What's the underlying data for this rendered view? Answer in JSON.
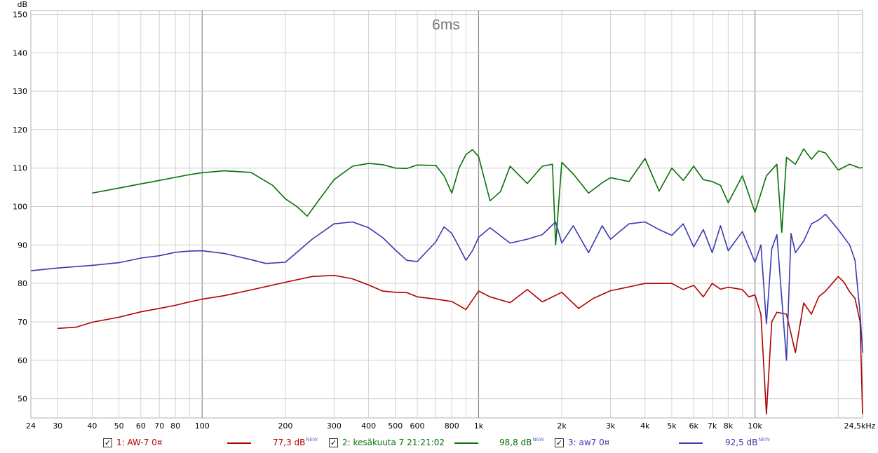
{
  "chart_data": {
    "type": "line",
    "overlay_label": "6ms",
    "y_unit": "dB",
    "ylim": [
      45,
      151
    ],
    "y_ticks": [
      "50",
      "60",
      "70",
      "80",
      "90",
      "100",
      "110",
      "120",
      "130",
      "140",
      "150"
    ],
    "xlim": [
      24,
      24500
    ],
    "x_scale": "log",
    "x_ticks": [
      {
        "v": 24,
        "label": "24"
      },
      {
        "v": 30,
        "label": "30"
      },
      {
        "v": 40,
        "label": "40"
      },
      {
        "v": 50,
        "label": "50"
      },
      {
        "v": 60,
        "label": "60"
      },
      {
        "v": 70,
        "label": "70"
      },
      {
        "v": 80,
        "label": "80"
      },
      {
        "v": 100,
        "label": "100"
      },
      {
        "v": 200,
        "label": "200"
      },
      {
        "v": 300,
        "label": "300"
      },
      {
        "v": 400,
        "label": "400"
      },
      {
        "v": 500,
        "label": "500"
      },
      {
        "v": 600,
        "label": "600"
      },
      {
        "v": 800,
        "label": "800"
      },
      {
        "v": 1000,
        "label": "1k"
      },
      {
        "v": 2000,
        "label": "2k"
      },
      {
        "v": 3000,
        "label": "3k"
      },
      {
        "v": 4000,
        "label": "4k"
      },
      {
        "v": 5000,
        "label": "5k"
      },
      {
        "v": 6000,
        "label": "6k"
      },
      {
        "v": 7000,
        "label": "7k"
      },
      {
        "v": 8000,
        "label": "8k"
      },
      {
        "v": 10000,
        "label": "10k"
      },
      {
        "v": 24500,
        "label": "24,5kHz"
      }
    ],
    "grid": true,
    "series": [
      {
        "name": "1: AW-7 0¤",
        "level": "77,3 dB",
        "color": "#b00000",
        "x": [
          30,
          35,
          40,
          50,
          60,
          70,
          80,
          90,
          100,
          120,
          150,
          200,
          250,
          300,
          350,
          400,
          450,
          500,
          550,
          600,
          700,
          800,
          900,
          1000,
          1100,
          1300,
          1500,
          1700,
          2000,
          2300,
          2600,
          3000,
          3500,
          4000,
          4500,
          5000,
          5500,
          6000,
          6500,
          7000,
          7500,
          8000,
          9000,
          9500,
          10000,
          10500,
          11000,
          11500,
          12000,
          13000,
          14000,
          15000,
          16000,
          17000,
          18000,
          20000,
          21000,
          22000,
          23000,
          24000,
          24500
        ],
        "y": [
          68.3,
          68.6,
          69.9,
          71.2,
          72.6,
          73.5,
          74.3,
          75.2,
          75.9,
          76.8,
          78.3,
          80.3,
          81.8,
          82.1,
          81.2,
          79.6,
          78,
          77.7,
          77.6,
          76.5,
          75.9,
          75.3,
          73.2,
          78,
          76.5,
          75,
          78.4,
          75.2,
          77.7,
          73.5,
          76.1,
          78.1,
          79.1,
          80,
          80,
          80,
          78.4,
          79.5,
          76.5,
          80,
          78.5,
          79,
          78.4,
          76.5,
          77,
          72,
          46,
          70,
          72.5,
          72,
          62,
          74.9,
          72,
          76.5,
          78,
          81.8,
          80.3,
          77.8,
          76.1,
          70,
          46
        ]
      },
      {
        "name": "2: kesäkuuta 7 21:21:02",
        "level": "98,8 dB",
        "color": "#087008",
        "x": [
          40,
          50,
          60,
          70,
          80,
          90,
          100,
          120,
          150,
          180,
          200,
          220,
          240,
          260,
          300,
          350,
          400,
          450,
          500,
          550,
          600,
          700,
          750,
          800,
          850,
          900,
          950,
          1000,
          1100,
          1200,
          1300,
          1500,
          1700,
          1850,
          1900,
          2000,
          2200,
          2500,
          2800,
          3000,
          3500,
          4000,
          4500,
          5000,
          5500,
          6000,
          6500,
          7000,
          7500,
          8000,
          9000,
          10000,
          11000,
          12000,
          12500,
          13000,
          14000,
          15000,
          16000,
          17000,
          18000,
          20000,
          22000,
          24000,
          24500
        ],
        "y": [
          103.5,
          104.8,
          105.9,
          106.8,
          107.6,
          108.3,
          108.8,
          109.3,
          108.9,
          105.5,
          102,
          100,
          97.5,
          101,
          107,
          110.5,
          111.2,
          110.9,
          110,
          109.9,
          110.8,
          110.7,
          108,
          103.5,
          110,
          113.5,
          114.8,
          113,
          101.5,
          103.9,
          110.5,
          106,
          110.5,
          111,
          90,
          111.5,
          108.5,
          103.5,
          106.2,
          107.5,
          106.5,
          112.5,
          104,
          110,
          106.8,
          110.5,
          107,
          106.5,
          105.5,
          101,
          108,
          98.5,
          108,
          111,
          93.3,
          112.8,
          111,
          115,
          112.3,
          114.5,
          113.9,
          109.5,
          111,
          110,
          110.2
        ]
      },
      {
        "name": "3: aw7 0¤",
        "level": "92,5 dB",
        "color": "#3a3ab0",
        "x": [
          24,
          30,
          40,
          50,
          60,
          70,
          80,
          90,
          100,
          120,
          150,
          170,
          200,
          250,
          300,
          350,
          400,
          450,
          500,
          550,
          600,
          700,
          750,
          800,
          850,
          900,
          950,
          1000,
          1100,
          1300,
          1500,
          1700,
          1900,
          2000,
          2200,
          2500,
          2800,
          3000,
          3500,
          4000,
          4500,
          5000,
          5500,
          6000,
          6500,
          7000,
          7500,
          8000,
          9000,
          10000,
          10500,
          11000,
          11500,
          12000,
          13000,
          13500,
          14000,
          15000,
          16000,
          17000,
          18000,
          20000,
          22000,
          23000,
          24000,
          24500
        ],
        "y": [
          83.3,
          84,
          84.7,
          85.4,
          86.6,
          87.2,
          88.1,
          88.4,
          88.5,
          87.8,
          86.2,
          85.2,
          85.5,
          91.5,
          95.5,
          96,
          94.5,
          91.9,
          88.7,
          86,
          85.7,
          90.8,
          94.7,
          93,
          89.5,
          86,
          88.5,
          92,
          94.5,
          90.5,
          91.5,
          92.7,
          96,
          90.5,
          95,
          88,
          95,
          91.5,
          95.5,
          96,
          94,
          92.5,
          95.5,
          89.5,
          94,
          88,
          95,
          88.5,
          93.5,
          85.5,
          90,
          69.5,
          89,
          92.7,
          60,
          93,
          88,
          91,
          95.5,
          96.5,
          98,
          94,
          90,
          86,
          72,
          62
        ]
      }
    ]
  },
  "legend": [
    {
      "checked": true,
      "check_glyph": "✓",
      "name": "1: AW-7 0¤",
      "level": "77,3 dB",
      "new_tag": "NEW",
      "color": "#b00000"
    },
    {
      "checked": true,
      "check_glyph": "✓",
      "name": "2: kesäkuuta 7 21:21:02",
      "level": "98,8 dB",
      "new_tag": "NEW",
      "color": "#087008"
    },
    {
      "checked": true,
      "check_glyph": "✓",
      "name": "3: aw7 0¤",
      "level": "92,5 dB",
      "new_tag": "NEW",
      "color": "#3a3ab0"
    }
  ]
}
